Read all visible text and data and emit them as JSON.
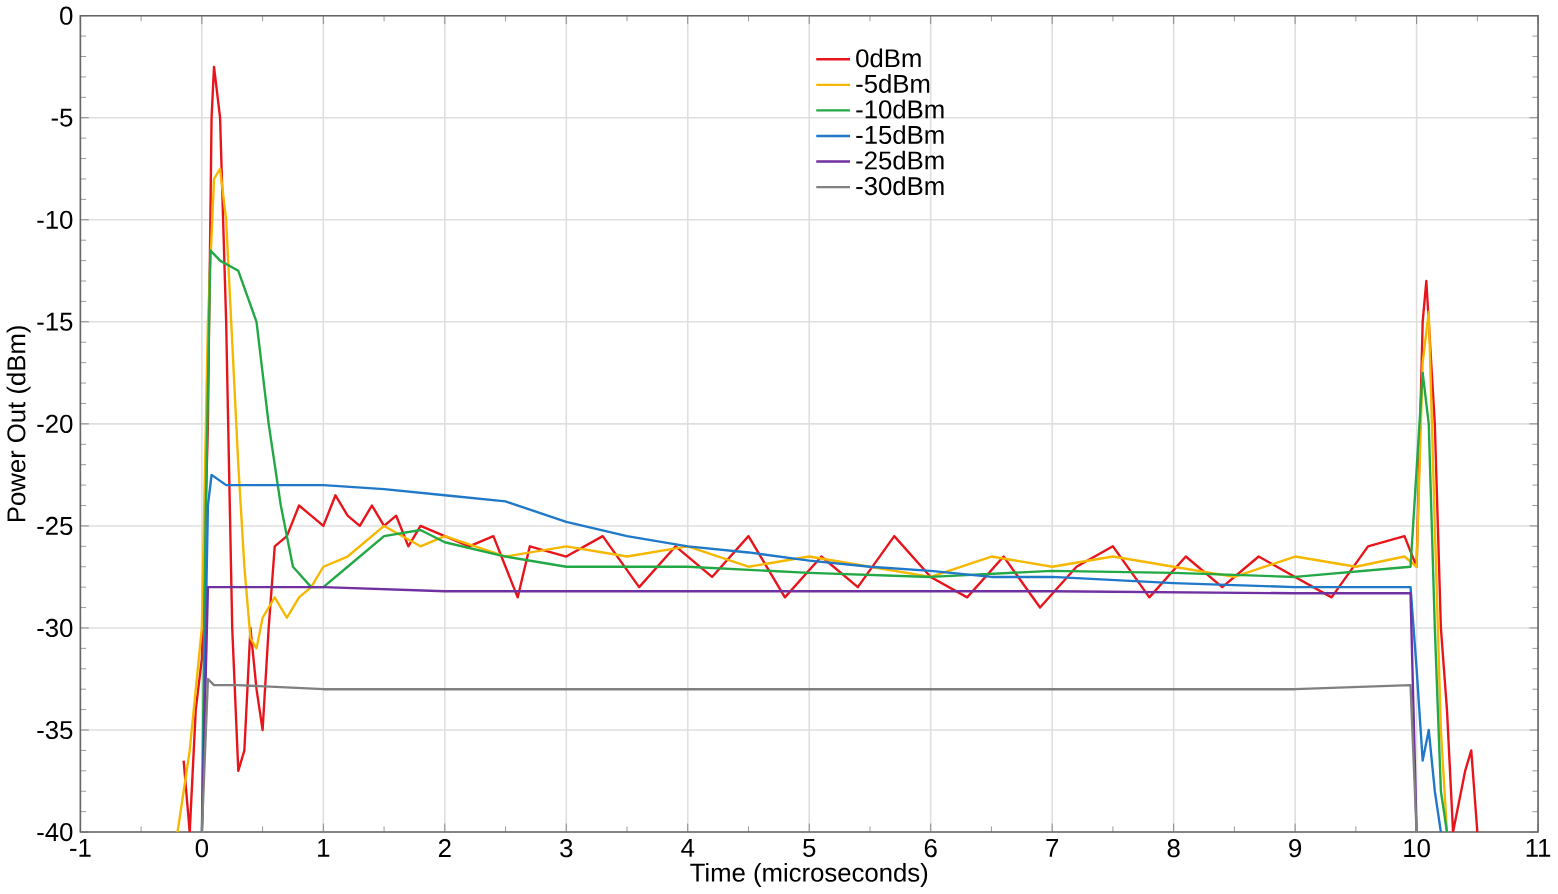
{
  "chart_data": {
    "type": "line",
    "xlabel": "Time (microseconds)",
    "ylabel": "Power Out (dBm)",
    "xlim": [
      -1,
      11
    ],
    "ylim": [
      -40,
      0
    ],
    "xticks": [
      -1,
      0,
      1,
      2,
      3,
      4,
      5,
      6,
      7,
      8,
      9,
      10,
      11
    ],
    "yticks": [
      -40,
      -35,
      -30,
      -25,
      -20,
      -15,
      -10,
      -5,
      0
    ],
    "grid": true,
    "legend": "top",
    "marker": "none",
    "line_style": "solid",
    "series": [
      {
        "name": "0dBm",
        "color": "#e8141b",
        "x": [
          -0.15,
          -0.1,
          -0.05,
          0,
          0.05,
          0.08,
          0.1,
          0.15,
          0.2,
          0.25,
          0.3,
          0.35,
          0.4,
          0.45,
          0.5,
          0.55,
          0.6,
          0.7,
          0.8,
          0.9,
          1.0,
          1.1,
          1.2,
          1.3,
          1.4,
          1.5,
          1.6,
          1.7,
          1.8,
          2.0,
          2.2,
          2.4,
          2.5,
          2.6,
          2.7,
          3.0,
          3.3,
          3.6,
          3.9,
          4.2,
          4.5,
          4.8,
          5.1,
          5.4,
          5.7,
          6.0,
          6.3,
          6.6,
          6.9,
          7.2,
          7.5,
          7.8,
          8.1,
          8.4,
          8.7,
          9.0,
          9.3,
          9.6,
          9.9,
          10.0,
          10.05,
          10.08,
          10.15,
          10.2,
          10.25,
          10.3,
          10.4,
          10.45,
          10.5
        ],
        "values": [
          -36.5,
          -40,
          -34,
          -31.5,
          -20,
          -5,
          -2.5,
          -5,
          -15,
          -30,
          -37,
          -36,
          -30,
          -33,
          -35,
          -30,
          -26,
          -25.5,
          -24,
          -24.5,
          -25,
          -23.5,
          -24.5,
          -25,
          -24,
          -25,
          -24.5,
          -26,
          -25,
          -25.5,
          -26,
          -25.5,
          -27,
          -28.5,
          -26,
          -26.5,
          -25.5,
          -28,
          -26,
          -27.5,
          -25.5,
          -28.5,
          -26.5,
          -28,
          -25.5,
          -27.5,
          -28.5,
          -26.5,
          -29,
          -27,
          -26,
          -28.5,
          -26.5,
          -28,
          -26.5,
          -27.5,
          -28.5,
          -26,
          -25.5,
          -27,
          -15,
          -13,
          -20,
          -30,
          -34,
          -40,
          -37,
          -36,
          -40
        ]
      },
      {
        "name": "-5dBm",
        "color": "#f5b700",
        "x": [
          -0.2,
          -0.1,
          0,
          0.05,
          0.1,
          0.15,
          0.2,
          0.25,
          0.3,
          0.35,
          0.4,
          0.45,
          0.5,
          0.6,
          0.7,
          0.8,
          0.9,
          1.0,
          1.2,
          1.5,
          1.8,
          2.0,
          2.5,
          3.0,
          3.5,
          4.0,
          4.5,
          5.0,
          5.5,
          6.0,
          6.5,
          7.0,
          7.5,
          8.0,
          8.5,
          9.0,
          9.5,
          9.9,
          10.0,
          10.05,
          10.1,
          10.15,
          10.2,
          10.25
        ],
        "values": [
          -40,
          -36,
          -30,
          -15,
          -8,
          -7.5,
          -10,
          -16,
          -22,
          -27,
          -30.5,
          -31,
          -29.5,
          -28.5,
          -29.5,
          -28.5,
          -28,
          -27,
          -26.5,
          -25,
          -26,
          -25.5,
          -26.5,
          -26,
          -26.5,
          -26,
          -27,
          -26.5,
          -27,
          -27.5,
          -26.5,
          -27,
          -26.5,
          -27,
          -27.5,
          -26.5,
          -27,
          -26.5,
          -27,
          -17,
          -14.5,
          -25,
          -35,
          -40
        ]
      },
      {
        "name": "-10dBm",
        "color": "#22a845",
        "x": [
          0,
          0.03,
          0.07,
          0.15,
          0.3,
          0.45,
          0.55,
          0.65,
          0.75,
          0.9,
          1.0,
          1.2,
          1.5,
          1.8,
          2.0,
          2.5,
          3.0,
          4.0,
          5.0,
          6.0,
          7.0,
          8.0,
          9.0,
          9.95,
          10.05,
          10.1,
          10.15,
          10.2,
          10.25
        ],
        "values": [
          -40,
          -25,
          -11.5,
          -12,
          -12.5,
          -15,
          -20,
          -24,
          -27,
          -28,
          -28,
          -27,
          -25.5,
          -25.2,
          -25.8,
          -26.5,
          -27,
          -27,
          -27.3,
          -27.5,
          -27.2,
          -27.3,
          -27.5,
          -27,
          -17.5,
          -20,
          -30,
          -38,
          -40
        ]
      },
      {
        "name": "-15dBm",
        "color": "#1f78c8",
        "x": [
          0,
          0.05,
          0.08,
          0.2,
          0.5,
          1.0,
          1.5,
          2.0,
          2.5,
          3.0,
          3.5,
          4.0,
          4.5,
          5.0,
          5.5,
          6.0,
          6.5,
          7.0,
          8.0,
          9.0,
          9.95,
          10.0,
          10.05,
          10.1,
          10.15,
          10.2
        ],
        "values": [
          -40,
          -24,
          -22.5,
          -23,
          -23,
          -23,
          -23.2,
          -23.5,
          -23.8,
          -24.8,
          -25.5,
          -26,
          -26.3,
          -26.7,
          -27,
          -27.2,
          -27.5,
          -27.5,
          -27.8,
          -28,
          -28,
          -32,
          -36.5,
          -35,
          -38,
          -40
        ]
      },
      {
        "name": "-25dBm",
        "color": "#7030a0",
        "x": [
          0,
          0.05,
          0.1,
          1.0,
          2.0,
          3.0,
          5.0,
          7.0,
          9.0,
          9.95,
          10.0
        ],
        "values": [
          -40,
          -28,
          -28,
          -28,
          -28.2,
          -28.2,
          -28.2,
          -28.2,
          -28.3,
          -28.3,
          -40
        ]
      },
      {
        "name": "-30dBm",
        "color": "#808080",
        "x": [
          0,
          0.05,
          0.1,
          0.3,
          1.0,
          2.0,
          3.0,
          5.0,
          7.0,
          9.0,
          9.95,
          10.0
        ],
        "values": [
          -40,
          -32.5,
          -32.8,
          -32.8,
          -33,
          -33,
          -33,
          -33,
          -33,
          -33,
          -32.8,
          -40
        ]
      }
    ]
  }
}
